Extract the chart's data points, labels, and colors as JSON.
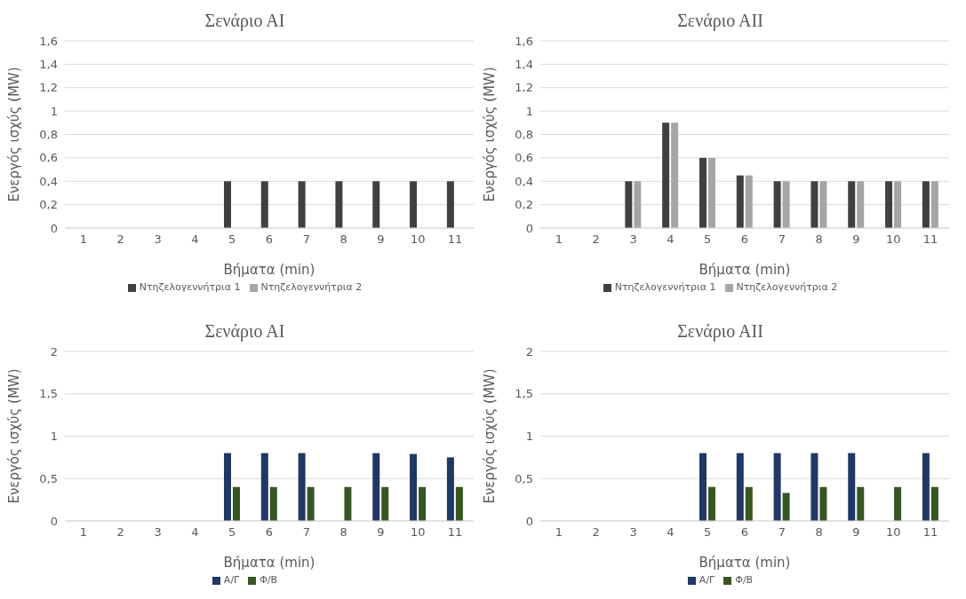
{
  "chart_data": [
    {
      "type": "bar",
      "title": "Σενάριο ΑΙ",
      "xlabel": "Βήματα (min)",
      "ylabel": "Ενεργός ισχύς (MW)",
      "categories": [
        "1",
        "2",
        "3",
        "4",
        "5",
        "6",
        "7",
        "8",
        "9",
        "10",
        "11"
      ],
      "series": [
        {
          "name": "Ντηζελογεννήτρια 1",
          "color": "#404040",
          "values": [
            0,
            0,
            0,
            0,
            0.4,
            0.4,
            0.4,
            0.4,
            0.4,
            0.4,
            0.4
          ]
        },
        {
          "name": "Ντηζελογεννήτρια 2",
          "color": "#a5a5a5",
          "values": [
            0,
            0,
            0,
            0,
            0,
            0,
            0,
            0,
            0,
            0,
            0
          ]
        }
      ],
      "ylim": [
        0,
        1.6
      ],
      "yticks": [
        0,
        {
          "value": 0.2,
          "label": "0,2"
        },
        {
          "value": 0.4,
          "label": "0,4"
        },
        {
          "value": 0.6,
          "label": "0,6"
        },
        {
          "value": 0.8,
          "label": "0,8"
        },
        1,
        {
          "value": 1.2,
          "label": "1,2"
        },
        {
          "value": 1.4,
          "label": "1,4"
        },
        {
          "value": 1.6,
          "label": "1,6"
        }
      ],
      "grid": "y",
      "legend": "bottom"
    },
    {
      "type": "bar",
      "title": "Σενάριο ΑΙΙ",
      "xlabel": "Βήματα (min)",
      "ylabel": "Ενεργός ισχύς (MW)",
      "categories": [
        "1",
        "2",
        "3",
        "4",
        "5",
        "6",
        "7",
        "8",
        "9",
        "10",
        "11"
      ],
      "series": [
        {
          "name": "Ντηζελογεννήτρια 1",
          "color": "#404040",
          "values": [
            0,
            0,
            0.4,
            0.9,
            0.6,
            0.45,
            0.4,
            0.4,
            0.4,
            0.4,
            0.4
          ]
        },
        {
          "name": "Ντηζελογεννήτρια 2",
          "color": "#a5a5a5",
          "values": [
            0,
            0,
            0.4,
            0.9,
            0.6,
            0.45,
            0.4,
            0.4,
            0.4,
            0.4,
            0.4
          ]
        }
      ],
      "ylim": [
        0,
        1.6
      ],
      "yticks": [
        0,
        {
          "value": 0.2,
          "label": "0,2"
        },
        {
          "value": 0.4,
          "label": "0,4"
        },
        {
          "value": 0.6,
          "label": "0,6"
        },
        {
          "value": 0.8,
          "label": "0,8"
        },
        1,
        {
          "value": 1.2,
          "label": "1,2"
        },
        {
          "value": 1.4,
          "label": "1,4"
        },
        {
          "value": 1.6,
          "label": "1,6"
        }
      ],
      "grid": "y",
      "legend": "bottom"
    },
    {
      "type": "bar",
      "title": "Σενάριο ΑΙ",
      "xlabel": "Βήματα (min)",
      "ylabel": "Ενεργός ισχύς (MW)",
      "categories": [
        "1",
        "2",
        "3",
        "4",
        "5",
        "6",
        "7",
        "8",
        "9",
        "10",
        "11"
      ],
      "series": [
        {
          "name": "Α/Γ",
          "color": "#203864",
          "values": [
            0,
            0,
            0,
            0,
            0.8,
            0.8,
            0.8,
            0,
            0.8,
            0.79,
            0.75
          ]
        },
        {
          "name": "Φ/Β",
          "color": "#375623",
          "values": [
            0,
            0,
            0,
            0,
            0.4,
            0.4,
            0.4,
            0.4,
            0.4,
            0.4,
            0.4
          ]
        }
      ],
      "ylim": [
        0,
        2
      ],
      "yticks": [
        0,
        {
          "value": 0.5,
          "label": "0,5"
        },
        1,
        {
          "value": 1.5,
          "label": "1,5"
        },
        2
      ],
      "grid": "y",
      "legend": "bottom"
    },
    {
      "type": "bar",
      "title": "Σενάριο ΑΙΙ",
      "xlabel": "Βήματα (min)",
      "ylabel": "Ενεργός ισχύς (MW)",
      "categories": [
        "1",
        "2",
        "3",
        "4",
        "5",
        "6",
        "7",
        "8",
        "9",
        "10",
        "11"
      ],
      "series": [
        {
          "name": "Α/Γ",
          "color": "#203864",
          "values": [
            0,
            0,
            0,
            0,
            0.8,
            0.8,
            0.8,
            0.8,
            0.8,
            0,
            0.8
          ]
        },
        {
          "name": "Φ/Β",
          "color": "#375623",
          "values": [
            0,
            0,
            0,
            0,
            0.4,
            0.4,
            0.33,
            0.4,
            0.4,
            0.4,
            0.4
          ]
        }
      ],
      "ylim": [
        0,
        2
      ],
      "yticks": [
        0,
        {
          "value": 0.5,
          "label": "0,5"
        },
        1,
        {
          "value": 1.5,
          "label": "1,5"
        },
        2
      ],
      "grid": "y",
      "legend": "bottom"
    }
  ]
}
